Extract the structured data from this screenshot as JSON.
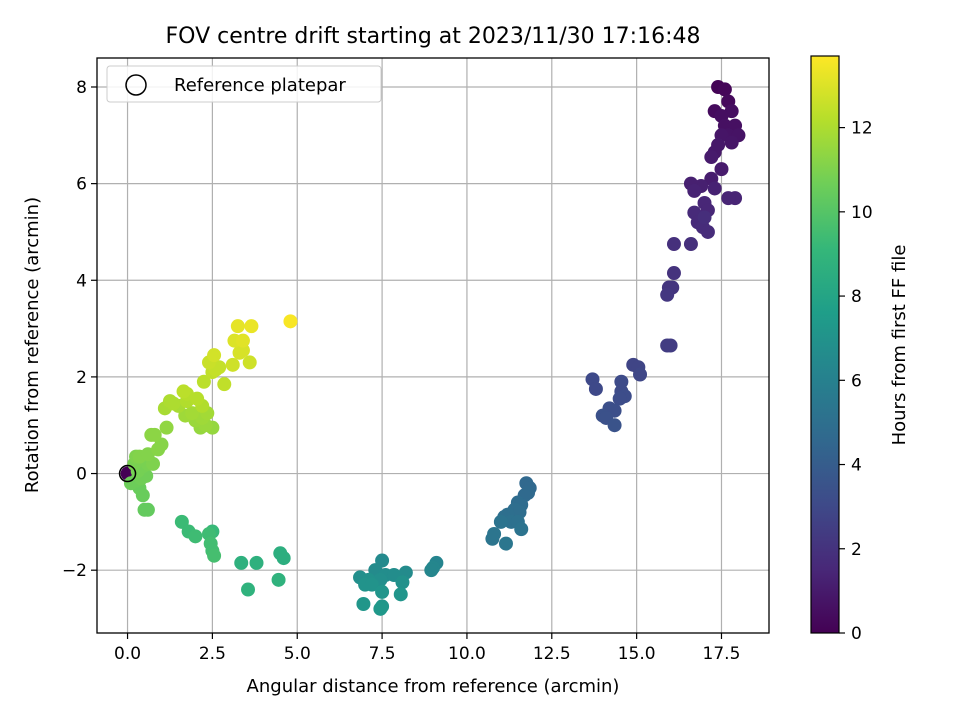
{
  "chart_data": {
    "type": "scatter",
    "title": "FOV centre drift starting at 2023/11/30 17:16:48",
    "xlabel": "Angular distance from reference (arcmin)",
    "ylabel": "Rotation from reference (arcmin)",
    "xlim": [
      -0.9,
      18.9
    ],
    "ylim": [
      -3.3,
      8.6
    ],
    "x_ticks": [
      0.0,
      2.5,
      5.0,
      7.5,
      10.0,
      12.5,
      15.0,
      17.5
    ],
    "x_tick_labels": [
      "0.0",
      "2.5",
      "5.0",
      "7.5",
      "10.0",
      "12.5",
      "15.0",
      "17.5"
    ],
    "y_ticks": [
      -2,
      0,
      2,
      4,
      6,
      8
    ],
    "y_tick_labels": [
      "−2",
      "0",
      "2",
      "4",
      "6",
      "8"
    ],
    "grid": true,
    "legend": {
      "position": "upper-left",
      "entries": [
        "Reference platepar"
      ]
    },
    "reference_point": {
      "x": 0.0,
      "y": 0.0
    },
    "colorbar": {
      "label": "Hours from first FF file",
      "range": [
        0,
        13.7
      ],
      "ticks": [
        0,
        2,
        4,
        6,
        8,
        10,
        12
      ],
      "tick_labels": [
        "0",
        "2",
        "4",
        "6",
        "8",
        "10",
        "12"
      ],
      "colormap": "viridis"
    },
    "colormap_stops": [
      "#440154",
      "#482878",
      "#3e4a89",
      "#31688e",
      "#26828e",
      "#1f9e89",
      "#35b779",
      "#6ece58",
      "#b5de2b",
      "#fde725"
    ],
    "points": [
      {
        "x": 0.0,
        "y": 0.0,
        "t": 0.0
      },
      {
        "x": 17.4,
        "y": 8.0,
        "t": 0.1
      },
      {
        "x": 17.6,
        "y": 7.95,
        "t": 0.2
      },
      {
        "x": 17.7,
        "y": 7.7,
        "t": 0.3
      },
      {
        "x": 17.3,
        "y": 7.5,
        "t": 0.4
      },
      {
        "x": 17.8,
        "y": 7.5,
        "t": 0.5
      },
      {
        "x": 17.5,
        "y": 7.4,
        "t": 0.5
      },
      {
        "x": 17.6,
        "y": 7.2,
        "t": 0.6
      },
      {
        "x": 17.9,
        "y": 7.2,
        "t": 0.6
      },
      {
        "x": 17.7,
        "y": 7.0,
        "t": 0.7
      },
      {
        "x": 18.0,
        "y": 7.0,
        "t": 0.7
      },
      {
        "x": 17.5,
        "y": 7.0,
        "t": 0.8
      },
      {
        "x": 17.8,
        "y": 6.85,
        "t": 0.8
      },
      {
        "x": 17.4,
        "y": 6.8,
        "t": 0.9
      },
      {
        "x": 17.3,
        "y": 6.65,
        "t": 0.9
      },
      {
        "x": 17.2,
        "y": 6.55,
        "t": 1.0
      },
      {
        "x": 17.5,
        "y": 6.3,
        "t": 1.0
      },
      {
        "x": 17.2,
        "y": 6.1,
        "t": 1.1
      },
      {
        "x": 16.9,
        "y": 5.95,
        "t": 1.2
      },
      {
        "x": 16.6,
        "y": 6.0,
        "t": 1.2
      },
      {
        "x": 16.7,
        "y": 5.85,
        "t": 1.3
      },
      {
        "x": 17.3,
        "y": 5.9,
        "t": 1.3
      },
      {
        "x": 17.9,
        "y": 5.7,
        "t": 1.4
      },
      {
        "x": 17.7,
        "y": 5.7,
        "t": 1.4
      },
      {
        "x": 17.0,
        "y": 5.6,
        "t": 1.5
      },
      {
        "x": 17.1,
        "y": 5.45,
        "t": 1.5
      },
      {
        "x": 16.7,
        "y": 5.4,
        "t": 1.6
      },
      {
        "x": 16.8,
        "y": 5.2,
        "t": 1.6
      },
      {
        "x": 16.95,
        "y": 5.1,
        "t": 1.7
      },
      {
        "x": 17.1,
        "y": 5.0,
        "t": 1.7
      },
      {
        "x": 17.0,
        "y": 5.3,
        "t": 1.8
      },
      {
        "x": 16.1,
        "y": 4.75,
        "t": 1.9
      },
      {
        "x": 16.6,
        "y": 4.75,
        "t": 1.9
      },
      {
        "x": 16.1,
        "y": 4.15,
        "t": 2.0
      },
      {
        "x": 15.95,
        "y": 3.85,
        "t": 2.1
      },
      {
        "x": 16.05,
        "y": 3.85,
        "t": 2.1
      },
      {
        "x": 15.9,
        "y": 3.7,
        "t": 2.2
      },
      {
        "x": 15.9,
        "y": 2.65,
        "t": 2.4
      },
      {
        "x": 16.0,
        "y": 2.65,
        "t": 2.4
      },
      {
        "x": 14.9,
        "y": 2.25,
        "t": 2.8
      },
      {
        "x": 15.05,
        "y": 2.2,
        "t": 2.8
      },
      {
        "x": 15.1,
        "y": 2.05,
        "t": 2.9
      },
      {
        "x": 13.7,
        "y": 1.95,
        "t": 3.0
      },
      {
        "x": 13.8,
        "y": 1.75,
        "t": 3.0
      },
      {
        "x": 14.55,
        "y": 1.9,
        "t": 3.1
      },
      {
        "x": 14.55,
        "y": 1.7,
        "t": 3.1
      },
      {
        "x": 14.65,
        "y": 1.6,
        "t": 3.2
      },
      {
        "x": 14.5,
        "y": 1.55,
        "t": 3.2
      },
      {
        "x": 14.2,
        "y": 1.35,
        "t": 3.3
      },
      {
        "x": 14.35,
        "y": 1.3,
        "t": 3.3
      },
      {
        "x": 14.0,
        "y": 1.2,
        "t": 3.4
      },
      {
        "x": 14.1,
        "y": 1.15,
        "t": 3.4
      },
      {
        "x": 14.35,
        "y": 1.0,
        "t": 3.5
      },
      {
        "x": 11.75,
        "y": -0.2,
        "t": 4.6
      },
      {
        "x": 11.85,
        "y": -0.3,
        "t": 4.6
      },
      {
        "x": 11.8,
        "y": -0.4,
        "t": 4.7
      },
      {
        "x": 11.7,
        "y": -0.45,
        "t": 4.7
      },
      {
        "x": 11.5,
        "y": -0.6,
        "t": 4.8
      },
      {
        "x": 11.6,
        "y": -0.65,
        "t": 4.8
      },
      {
        "x": 11.4,
        "y": -0.75,
        "t": 4.9
      },
      {
        "x": 11.55,
        "y": -0.8,
        "t": 4.9
      },
      {
        "x": 11.2,
        "y": -0.85,
        "t": 5.0
      },
      {
        "x": 11.1,
        "y": -0.9,
        "t": 5.0
      },
      {
        "x": 11.3,
        "y": -1.0,
        "t": 5.1
      },
      {
        "x": 11.5,
        "y": -1.0,
        "t": 5.1
      },
      {
        "x": 11.0,
        "y": -1.0,
        "t": 5.2
      },
      {
        "x": 11.6,
        "y": -1.15,
        "t": 5.2
      },
      {
        "x": 10.8,
        "y": -1.25,
        "t": 5.3
      },
      {
        "x": 10.75,
        "y": -1.35,
        "t": 5.3
      },
      {
        "x": 11.15,
        "y": -1.45,
        "t": 5.4
      },
      {
        "x": 9.1,
        "y": -1.85,
        "t": 6.2
      },
      {
        "x": 9.0,
        "y": -1.95,
        "t": 6.3
      },
      {
        "x": 8.95,
        "y": -2.0,
        "t": 6.3
      },
      {
        "x": 7.5,
        "y": -1.8,
        "t": 6.5
      },
      {
        "x": 7.3,
        "y": -2.0,
        "t": 6.6
      },
      {
        "x": 8.2,
        "y": -2.05,
        "t": 6.6
      },
      {
        "x": 7.6,
        "y": -2.1,
        "t": 6.7
      },
      {
        "x": 7.85,
        "y": -2.1,
        "t": 6.7
      },
      {
        "x": 6.85,
        "y": -2.15,
        "t": 6.8
      },
      {
        "x": 7.45,
        "y": -2.2,
        "t": 6.8
      },
      {
        "x": 7.1,
        "y": -2.2,
        "t": 6.9
      },
      {
        "x": 8.1,
        "y": -2.25,
        "t": 6.9
      },
      {
        "x": 7.0,
        "y": -2.3,
        "t": 7.0
      },
      {
        "x": 7.2,
        "y": -2.3,
        "t": 7.0
      },
      {
        "x": 7.5,
        "y": -2.45,
        "t": 7.1
      },
      {
        "x": 8.05,
        "y": -2.5,
        "t": 7.1
      },
      {
        "x": 6.95,
        "y": -2.7,
        "t": 7.2
      },
      {
        "x": 7.5,
        "y": -2.75,
        "t": 7.2
      },
      {
        "x": 7.45,
        "y": -2.8,
        "t": 7.3
      },
      {
        "x": 4.5,
        "y": -1.65,
        "t": 8.6
      },
      {
        "x": 4.6,
        "y": -1.75,
        "t": 8.6
      },
      {
        "x": 3.8,
        "y": -1.85,
        "t": 8.7
      },
      {
        "x": 3.35,
        "y": -1.85,
        "t": 8.7
      },
      {
        "x": 4.45,
        "y": -2.2,
        "t": 8.8
      },
      {
        "x": 3.55,
        "y": -2.4,
        "t": 8.8
      },
      {
        "x": 2.5,
        "y": -1.2,
        "t": 9.2
      },
      {
        "x": 1.6,
        "y": -1.0,
        "t": 9.3
      },
      {
        "x": 1.8,
        "y": -1.2,
        "t": 9.3
      },
      {
        "x": 2.0,
        "y": -1.3,
        "t": 9.4
      },
      {
        "x": 2.4,
        "y": -1.25,
        "t": 9.4
      },
      {
        "x": 2.45,
        "y": -1.45,
        "t": 9.5
      },
      {
        "x": 2.5,
        "y": -1.6,
        "t": 9.5
      },
      {
        "x": 2.55,
        "y": -1.7,
        "t": 9.6
      },
      {
        "x": 0.5,
        "y": -0.75,
        "t": 10.4
      },
      {
        "x": 0.6,
        "y": -0.75,
        "t": 10.4
      },
      {
        "x": 0.45,
        "y": -0.45,
        "t": 10.5
      },
      {
        "x": 0.35,
        "y": -0.3,
        "t": 10.5
      },
      {
        "x": 0.1,
        "y": -0.2,
        "t": 10.6
      },
      {
        "x": 0.25,
        "y": -0.15,
        "t": 10.6
      },
      {
        "x": 0.4,
        "y": -0.1,
        "t": 10.7
      },
      {
        "x": 0.55,
        "y": -0.05,
        "t": 10.7
      },
      {
        "x": 0.3,
        "y": 0.05,
        "t": 10.8
      },
      {
        "x": 0.45,
        "y": 0.15,
        "t": 10.8
      },
      {
        "x": 0.2,
        "y": 0.2,
        "t": 10.9
      },
      {
        "x": 0.6,
        "y": 0.2,
        "t": 10.9
      },
      {
        "x": 0.75,
        "y": 0.2,
        "t": 11.0
      },
      {
        "x": 0.25,
        "y": 0.35,
        "t": 11.0
      },
      {
        "x": 0.35,
        "y": 0.35,
        "t": 11.1
      },
      {
        "x": 0.6,
        "y": 0.4,
        "t": 11.1
      },
      {
        "x": 0.9,
        "y": 0.5,
        "t": 11.2
      },
      {
        "x": 1.0,
        "y": 0.6,
        "t": 11.2
      },
      {
        "x": 0.7,
        "y": 0.8,
        "t": 11.3
      },
      {
        "x": 0.8,
        "y": 0.8,
        "t": 11.3
      },
      {
        "x": 1.15,
        "y": 0.95,
        "t": 11.4
      },
      {
        "x": 2.5,
        "y": 0.95,
        "t": 11.5
      },
      {
        "x": 2.15,
        "y": 0.95,
        "t": 11.5
      },
      {
        "x": 2.3,
        "y": 1.0,
        "t": 11.6
      },
      {
        "x": 2.0,
        "y": 1.1,
        "t": 11.6
      },
      {
        "x": 2.2,
        "y": 1.15,
        "t": 11.7
      },
      {
        "x": 1.7,
        "y": 1.2,
        "t": 11.7
      },
      {
        "x": 1.9,
        "y": 1.25,
        "t": 11.8
      },
      {
        "x": 2.35,
        "y": 1.25,
        "t": 11.8
      },
      {
        "x": 1.1,
        "y": 1.35,
        "t": 11.9
      },
      {
        "x": 1.5,
        "y": 1.4,
        "t": 11.9
      },
      {
        "x": 1.35,
        "y": 1.45,
        "t": 12.0
      },
      {
        "x": 1.25,
        "y": 1.5,
        "t": 12.0
      },
      {
        "x": 2.2,
        "y": 1.4,
        "t": 12.1
      },
      {
        "x": 1.75,
        "y": 1.5,
        "t": 12.1
      },
      {
        "x": 2.05,
        "y": 1.55,
        "t": 12.2
      },
      {
        "x": 1.75,
        "y": 1.65,
        "t": 12.2
      },
      {
        "x": 1.65,
        "y": 1.7,
        "t": 12.3
      },
      {
        "x": 2.25,
        "y": 1.9,
        "t": 12.3
      },
      {
        "x": 2.85,
        "y": 1.85,
        "t": 12.4
      },
      {
        "x": 2.5,
        "y": 2.1,
        "t": 12.4
      },
      {
        "x": 2.6,
        "y": 2.15,
        "t": 12.5
      },
      {
        "x": 2.7,
        "y": 2.2,
        "t": 12.5
      },
      {
        "x": 2.4,
        "y": 2.3,
        "t": 12.6
      },
      {
        "x": 3.1,
        "y": 2.25,
        "t": 12.7
      },
      {
        "x": 3.6,
        "y": 2.3,
        "t": 12.7
      },
      {
        "x": 2.55,
        "y": 2.45,
        "t": 12.8
      },
      {
        "x": 3.3,
        "y": 2.5,
        "t": 12.9
      },
      {
        "x": 3.4,
        "y": 2.55,
        "t": 12.9
      },
      {
        "x": 3.15,
        "y": 2.75,
        "t": 13.0
      },
      {
        "x": 3.4,
        "y": 2.75,
        "t": 13.1
      },
      {
        "x": 3.25,
        "y": 3.05,
        "t": 13.2
      },
      {
        "x": 3.65,
        "y": 3.05,
        "t": 13.3
      },
      {
        "x": 4.8,
        "y": 3.15,
        "t": 13.6
      }
    ]
  }
}
